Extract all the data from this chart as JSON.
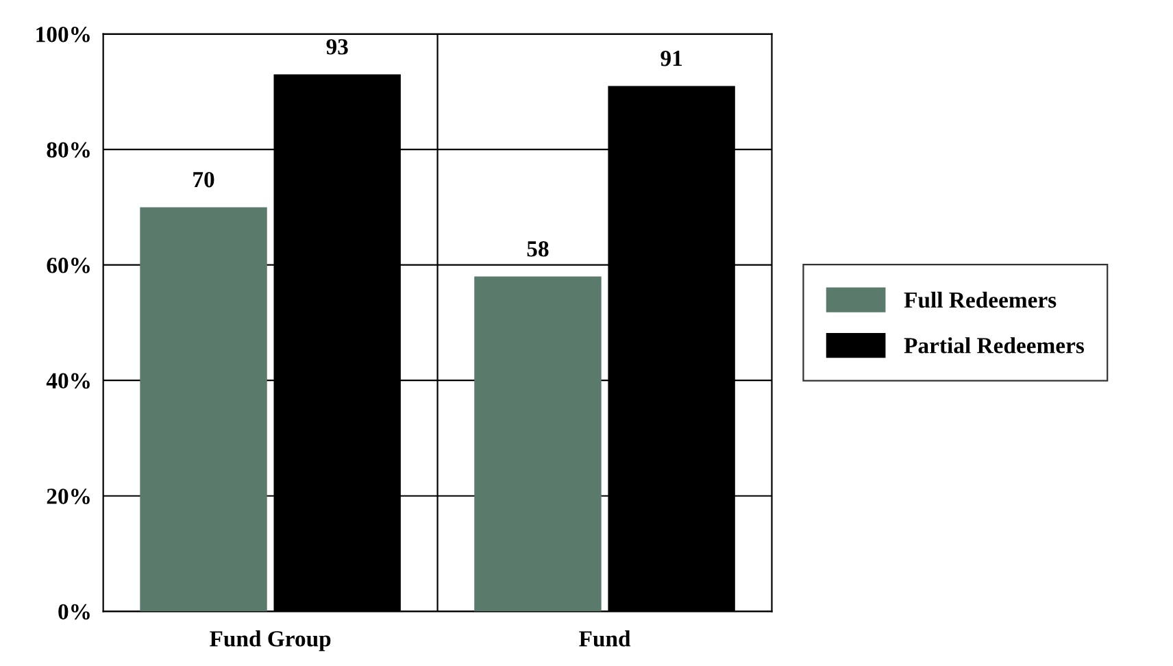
{
  "chart_data": {
    "type": "bar",
    "categories": [
      "Fund Group",
      "Fund"
    ],
    "series": [
      {
        "name": "Full Redeemers",
        "color": "#5a7a6c",
        "values": [
          70,
          58
        ]
      },
      {
        "name": "Partial Redeemers",
        "color": "#000000",
        "values": [
          93,
          91
        ]
      }
    ],
    "ylim": [
      0,
      100
    ],
    "yticks": [
      {
        "value": 0,
        "label": "0%"
      },
      {
        "value": 20,
        "label": "20%"
      },
      {
        "value": 40,
        "label": "40%"
      },
      {
        "value": 60,
        "label": "60%"
      },
      {
        "value": 80,
        "label": "80%"
      },
      {
        "value": 100,
        "label": "100%"
      }
    ],
    "grid": true,
    "legend": "right",
    "data_labels": true
  }
}
